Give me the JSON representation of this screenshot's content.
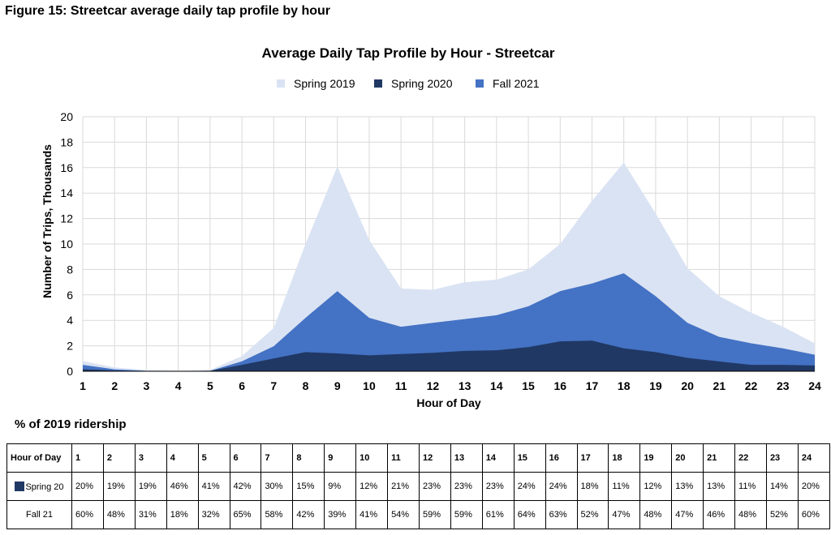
{
  "figure_title": "Figure 15: Streetcar average daily tap profile by hour",
  "chart_data": {
    "type": "area",
    "title": "Average Daily Tap Profile by Hour - Streetcar",
    "xlabel": "Hour of Day",
    "ylabel": "Number of Trips, Thousands",
    "x": [
      1,
      2,
      3,
      4,
      5,
      6,
      7,
      8,
      9,
      10,
      11,
      12,
      13,
      14,
      15,
      16,
      17,
      18,
      19,
      20,
      21,
      22,
      23,
      24
    ],
    "xlim": [
      1,
      24
    ],
    "ylim": [
      0,
      20
    ],
    "yticks": [
      0,
      2,
      4,
      6,
      8,
      10,
      12,
      14,
      16,
      18,
      20
    ],
    "grid": true,
    "legend_position": "top",
    "stacked": false,
    "series": [
      {
        "name": "Spring 2019",
        "color": "#dae3f3",
        "values": [
          0.8,
          0.3,
          0.1,
          0.05,
          0.1,
          1.2,
          3.4,
          10.0,
          16.1,
          10.3,
          6.5,
          6.4,
          7.0,
          7.2,
          8.0,
          10.0,
          13.4,
          16.4,
          12.4,
          8.1,
          5.9,
          4.6,
          3.5,
          2.2
        ]
      },
      {
        "name": "Fall 2021",
        "color": "#4472c4",
        "values": [
          0.5,
          0.15,
          0.03,
          0.01,
          0.03,
          0.78,
          1.97,
          4.2,
          6.3,
          4.2,
          3.5,
          3.8,
          4.1,
          4.4,
          5.1,
          6.3,
          6.9,
          7.7,
          5.9,
          3.8,
          2.7,
          2.2,
          1.8,
          1.3
        ]
      },
      {
        "name": "Spring 2020",
        "color": "#203864",
        "values": [
          0.16,
          0.06,
          0.02,
          0.02,
          0.04,
          0.5,
          1.0,
          1.5,
          1.4,
          1.25,
          1.35,
          1.45,
          1.6,
          1.65,
          1.9,
          2.35,
          2.4,
          1.8,
          1.5,
          1.05,
          0.77,
          0.5,
          0.5,
          0.45
        ]
      }
    ]
  },
  "legend_order": [
    "Spring 2019",
    "Spring 2020",
    "Fall 2021"
  ],
  "table": {
    "title": "% of 2019 ridership",
    "header_label": "Hour of Day",
    "hours": [
      "1",
      "2",
      "3",
      "4",
      "5",
      "6",
      "7",
      "8",
      "9",
      "10",
      "11",
      "12",
      "13",
      "14",
      "15",
      "16",
      "17",
      "18",
      "19",
      "20",
      "21",
      "22",
      "23",
      "24"
    ],
    "rows": [
      {
        "label": "Spring 20",
        "swatch_color": "#203864",
        "values": [
          "20%",
          "19%",
          "19%",
          "46%",
          "41%",
          "42%",
          "30%",
          "15%",
          "9%",
          "12%",
          "21%",
          "23%",
          "23%",
          "23%",
          "24%",
          "24%",
          "18%",
          "11%",
          "12%",
          "13%",
          "13%",
          "11%",
          "14%",
          "20%"
        ]
      },
      {
        "label": "Fall 21",
        "swatch_color": "",
        "values": [
          "60%",
          "48%",
          "31%",
          "18%",
          "32%",
          "65%",
          "58%",
          "42%",
          "39%",
          "41%",
          "54%",
          "59%",
          "59%",
          "61%",
          "64%",
          "63%",
          "52%",
          "47%",
          "48%",
          "47%",
          "46%",
          "48%",
          "52%",
          "60%"
        ]
      }
    ]
  }
}
